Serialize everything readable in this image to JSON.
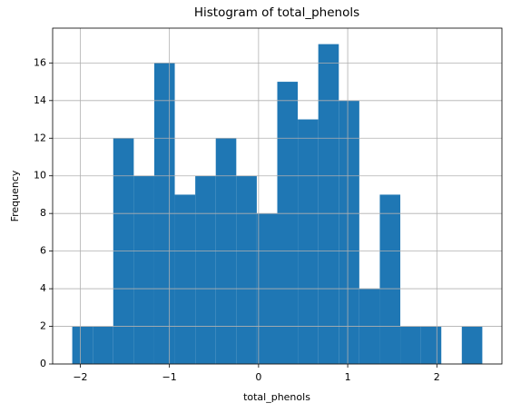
{
  "chart_data": {
    "type": "histogram",
    "title": "Histogram of total_phenols",
    "xlabel": "total_phenols",
    "ylabel": "Frequency",
    "bins": [
      -2.09,
      -1.86,
      -1.63,
      -1.4,
      -1.17,
      -0.94,
      -0.71,
      -0.48,
      -0.25,
      -0.02,
      0.21,
      0.44,
      0.67,
      0.9,
      1.13,
      1.36,
      1.59,
      1.82,
      2.05,
      2.28,
      2.51
    ],
    "counts": [
      2,
      2,
      12,
      10,
      16,
      9,
      10,
      12,
      10,
      8,
      15,
      13,
      17,
      14,
      4,
      9,
      2,
      2,
      0,
      2
    ],
    "color": "#1f77b4",
    "xlim": [
      -2.31,
      2.73
    ],
    "ylim": [
      0,
      17.85
    ],
    "xticks": [
      {
        "value": -2,
        "label": "−2"
      },
      {
        "value": -1,
        "label": "−1"
      },
      0,
      1,
      2
    ],
    "yticks": [
      0,
      2,
      4,
      6,
      8,
      10,
      12,
      14,
      16
    ],
    "grid": true
  }
}
